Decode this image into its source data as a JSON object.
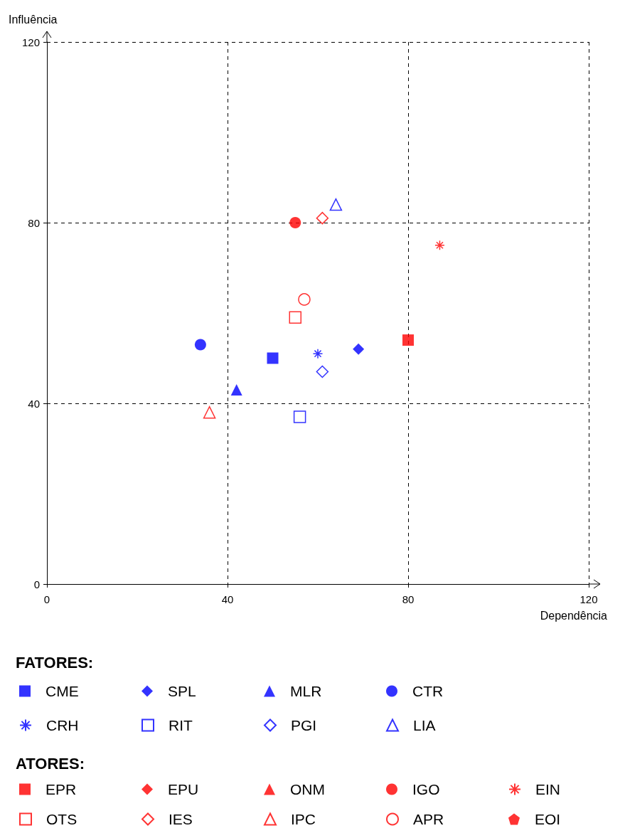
{
  "chart_data": {
    "type": "scatter",
    "xlabel": "Dependência",
    "ylabel": "Influência",
    "xlim": [
      0,
      120
    ],
    "ylim": [
      0,
      120
    ],
    "xticks": [
      0,
      40,
      80,
      120
    ],
    "yticks": [
      0,
      40,
      80,
      120
    ],
    "grid": true,
    "legend": "bottom",
    "annotations": [
      "FATORES:",
      "ATORES:"
    ],
    "series": [
      {
        "name": "CME",
        "color": "#0000ff",
        "marker": "square",
        "x": [
          50
        ],
        "values": [
          50
        ]
      },
      {
        "name": "SPL",
        "color": "#0000ff",
        "marker": "diamond",
        "x": [
          69
        ],
        "values": [
          52
        ]
      },
      {
        "name": "MLR",
        "color": "#0000ff",
        "marker": "triangle",
        "x": [
          42
        ],
        "values": [
          43
        ]
      },
      {
        "name": "CTR",
        "color": "#0000ff",
        "marker": "circle",
        "x": [
          34
        ],
        "values": [
          53
        ]
      },
      {
        "name": "CRH",
        "color": "#0000ff",
        "marker": "cross",
        "x": [
          60
        ],
        "values": [
          51
        ]
      },
      {
        "name": "RIT",
        "color": "#0000ff",
        "marker": "square-open",
        "x": [
          56
        ],
        "values": [
          37
        ]
      },
      {
        "name": "PGI",
        "color": "#0000ff",
        "marker": "diamond-open",
        "x": [
          61
        ],
        "values": [
          47
        ]
      },
      {
        "name": "LIA",
        "color": "#0000ff",
        "marker": "triangle-open",
        "x": [
          64
        ],
        "values": [
          84
        ]
      },
      {
        "name": "EPR",
        "color": "#ff0000",
        "marker": "square",
        "x": [
          80
        ],
        "values": [
          54
        ]
      },
      {
        "name": "EPU",
        "color": "#ff0000",
        "marker": "diamond",
        "x": [
          null
        ],
        "values": [
          null
        ]
      },
      {
        "name": "ONM",
        "color": "#ff0000",
        "marker": "triangle",
        "x": [
          null
        ],
        "values": [
          null
        ]
      },
      {
        "name": "IGO",
        "color": "#ff0000",
        "marker": "circle",
        "x": [
          55
        ],
        "values": [
          80
        ]
      },
      {
        "name": "EIN",
        "color": "#ff0000",
        "marker": "cross",
        "x": [
          87
        ],
        "values": [
          75
        ]
      },
      {
        "name": "OTS",
        "color": "#ff0000",
        "marker": "square-open",
        "x": [
          55
        ],
        "values": [
          59
        ]
      },
      {
        "name": "IES",
        "color": "#ff0000",
        "marker": "diamond-open",
        "x": [
          61
        ],
        "values": [
          81
        ]
      },
      {
        "name": "IPC",
        "color": "#ff0000",
        "marker": "triangle-open",
        "x": [
          36
        ],
        "values": [
          38
        ]
      },
      {
        "name": "APR",
        "color": "#ff0000",
        "marker": "circle-open",
        "x": [
          57
        ],
        "values": [
          63
        ]
      },
      {
        "name": "EOI",
        "color": "#ff0000",
        "marker": "pentagon",
        "x": [
          null
        ],
        "values": [
          null
        ]
      }
    ]
  }
}
